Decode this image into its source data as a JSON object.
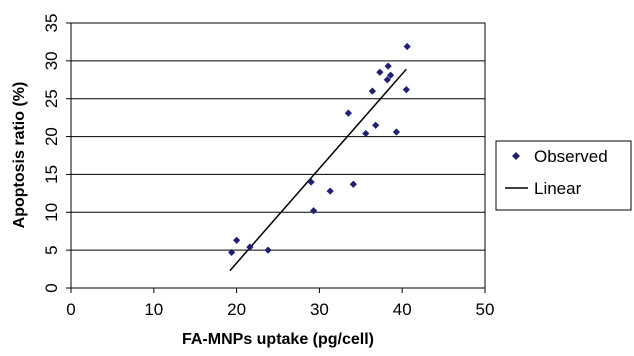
{
  "chart_data": {
    "type": "scatter",
    "xlabel": "FA-MNPs uptake (pg/cell)",
    "ylabel": "Apoptosis ratio (%)",
    "xlim": [
      0,
      50
    ],
    "ylim": [
      0,
      35
    ],
    "xticks": [
      0,
      10,
      20,
      30,
      40,
      50
    ],
    "yticks": [
      0,
      5,
      10,
      15,
      20,
      25,
      30,
      35
    ],
    "grid": "horizontal",
    "legend_position": "right",
    "series": [
      {
        "name": "Observed",
        "type": "scatter",
        "color": "#1f1f7a",
        "marker": "diamond",
        "points": [
          [
            19.4,
            4.7
          ],
          [
            20.0,
            6.3
          ],
          [
            21.6,
            5.4
          ],
          [
            23.8,
            5.0
          ],
          [
            29.0,
            14.0
          ],
          [
            29.3,
            10.2
          ],
          [
            31.3,
            12.8
          ],
          [
            33.5,
            23.1
          ],
          [
            34.1,
            13.7
          ],
          [
            35.6,
            20.4
          ],
          [
            36.4,
            26.0
          ],
          [
            36.8,
            21.5
          ],
          [
            37.3,
            28.5
          ],
          [
            38.2,
            27.5
          ],
          [
            38.3,
            29.3
          ],
          [
            38.6,
            28.1
          ],
          [
            39.3,
            20.6
          ],
          [
            40.5,
            26.2
          ],
          [
            40.6,
            31.9
          ]
        ]
      },
      {
        "name": "Linear",
        "type": "line",
        "color": "#000000",
        "points": [
          [
            19.2,
            2.3
          ],
          [
            40.5,
            28.9
          ]
        ]
      }
    ]
  }
}
